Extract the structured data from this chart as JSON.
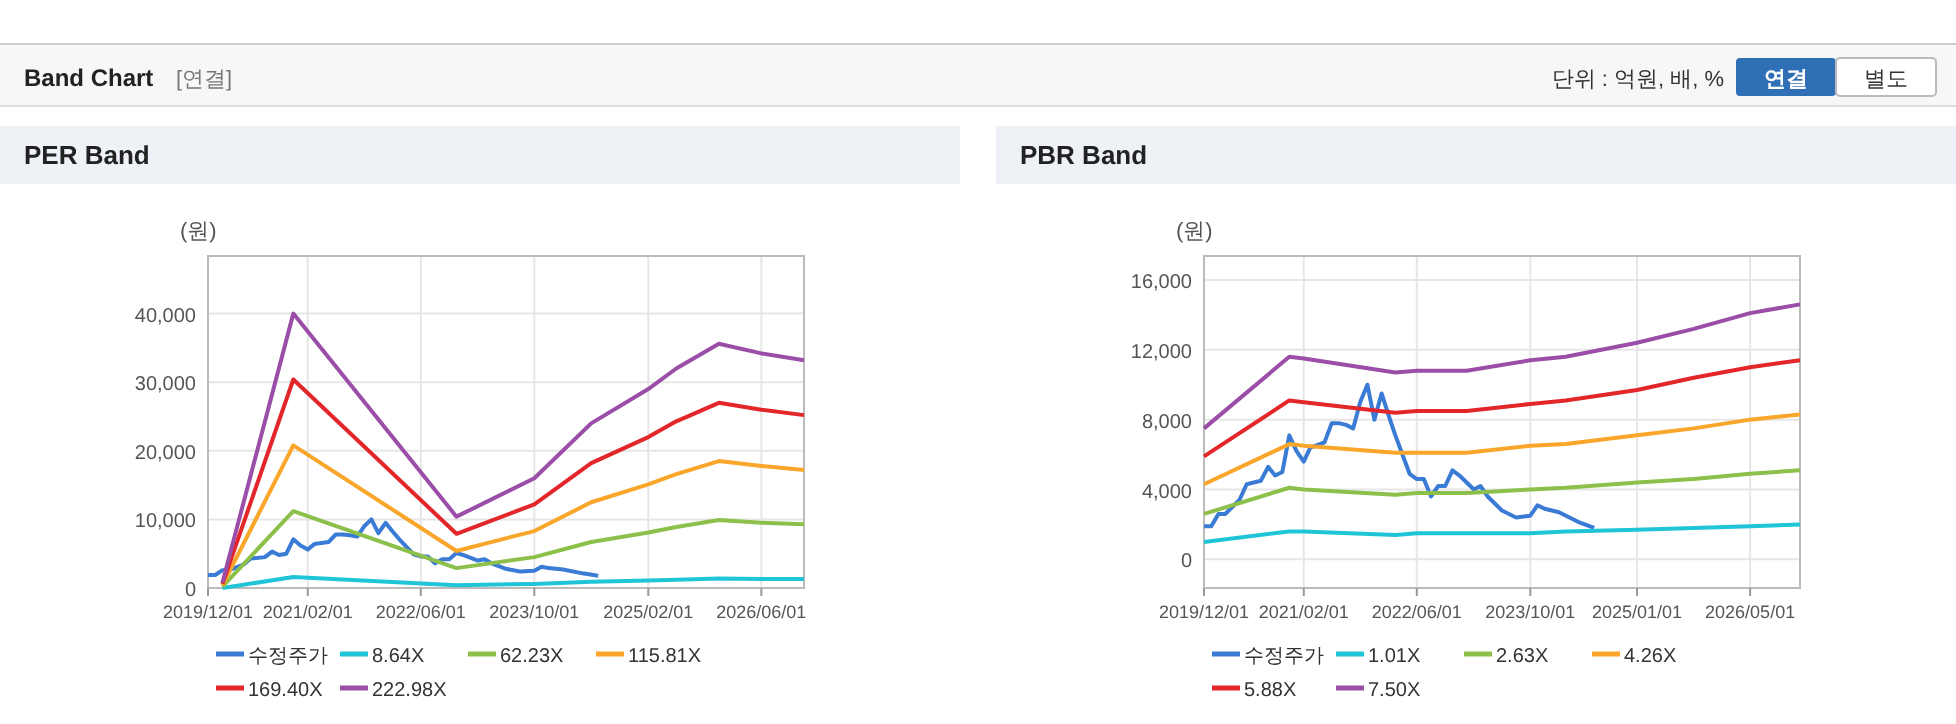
{
  "chart_data": [
    {
      "type": "line",
      "title": "PER Band",
      "ylabel": "(원)",
      "annotations": [
        "Band Chart",
        "[연결]",
        "단위 : 억원, 배, %",
        "연결",
        "별도"
      ],
      "xlim": [
        "2019-12-01",
        "2026-12-01"
      ],
      "xticks": [
        {
          "value": "2019-12-01",
          "label": "2019/12/01"
        },
        {
          "value": "2021-02-01",
          "label": "2021/02/01"
        },
        {
          "value": "2022-06-01",
          "label": "2022/06/01"
        },
        {
          "value": "2023-10-01",
          "label": "2023/10/01"
        },
        {
          "value": "2025-02-01",
          "label": "2025/02/01"
        },
        {
          "value": "2026-06-01",
          "label": "2026/06/01"
        }
      ],
      "ylim": [
        0,
        48400
      ],
      "yticks": [
        0,
        {
          "value": 10000,
          "label": "10,000"
        },
        {
          "value": 20000,
          "label": "20,000"
        },
        {
          "value": 30000,
          "label": "30,000"
        },
        {
          "value": 40000,
          "label": "40,000"
        }
      ],
      "grid": true,
      "legend": "bottom",
      "x": [
        "2020-02",
        "2020-12",
        "2022-11",
        "2023-10",
        "2024-06",
        "2025-02",
        "2025-06",
        "2025-12",
        "2026-06",
        "2026-12"
      ],
      "series": [
        {
          "name": "수정주가",
          "color": "#3a7bd5",
          "x": [
            "2019-12",
            "2020-01",
            "2020-02",
            "2020-03",
            "2020-05",
            "2020-06",
            "2020-08",
            "2020-09",
            "2020-10",
            "2020-11",
            "2020-12",
            "2021-01",
            "2021-02",
            "2021-03",
            "2021-05",
            "2021-06",
            "2021-07",
            "2021-08",
            "2021-09",
            "2021-10",
            "2021-11",
            "2021-12",
            "2022-01",
            "2022-02",
            "2022-03",
            "2022-05",
            "2022-06",
            "2022-07",
            "2022-08",
            "2022-09",
            "2022-10",
            "2022-11",
            "2022-12",
            "2023-02",
            "2023-03",
            "2023-04",
            "2023-06",
            "2023-08",
            "2023-10",
            "2023-11",
            "2023-12",
            "2024-02",
            "2024-05",
            "2024-07"
          ],
          "values": [
            1900,
            1900,
            2600,
            2600,
            3400,
            4300,
            4500,
            5300,
            4800,
            5000,
            7100,
            6200,
            5600,
            6400,
            6700,
            7800,
            7800,
            7700,
            7500,
            9000,
            10000,
            8000,
            9500,
            8200,
            7100,
            4900,
            4600,
            4600,
            3600,
            4200,
            4200,
            5100,
            4800,
            4000,
            4200,
            3600,
            2800,
            2400,
            2500,
            3100,
            2900,
            2700,
            2100,
            1800
          ]
        },
        {
          "name": "8.64X",
          "color": "#1fc4d6",
          "values": [
            0,
            1600,
            400,
            600,
            900,
            1100,
            1200,
            1400,
            1300,
            1300
          ]
        },
        {
          "name": "62.23X",
          "color": "#8dc04a",
          "values": [
            200,
            11200,
            2900,
            4500,
            6700,
            8100,
            8900,
            9900,
            9500,
            9300
          ]
        },
        {
          "name": "115.81X",
          "color": "#f9a62b",
          "values": [
            400,
            20800,
            5400,
            8300,
            12500,
            15100,
            16600,
            18500,
            17800,
            17200
          ]
        },
        {
          "name": "169.40X",
          "color": "#e3262a",
          "values": [
            600,
            30400,
            7900,
            12200,
            18200,
            22000,
            24300,
            27000,
            26000,
            25200
          ]
        },
        {
          "name": "222.98X",
          "color": "#9b4ea8",
          "values": [
            800,
            40000,
            10400,
            16000,
            24000,
            29000,
            32000,
            35600,
            34200,
            33200
          ]
        }
      ]
    },
    {
      "type": "line",
      "title": "PBR Band",
      "ylabel": "(원)",
      "xlim": [
        "2019-12-01",
        "2026-12-01"
      ],
      "xticks": [
        {
          "value": "2019-12-01",
          "label": "2019/12/01"
        },
        {
          "value": "2021-02-01",
          "label": "2021/02/01"
        },
        {
          "value": "2022-06-01",
          "label": "2022/06/01"
        },
        {
          "value": "2023-10-01",
          "label": "2023/10/01"
        },
        {
          "value": "2025-01-01",
          "label": "2025/01/01"
        },
        {
          "value": "2026-05-01",
          "label": "2026/05/01"
        }
      ],
      "ylim": [
        -1640,
        17370
      ],
      "yticks": [
        0,
        {
          "value": 4000,
          "label": "4,000"
        },
        {
          "value": 8000,
          "label": "8,000"
        },
        {
          "value": 12000,
          "label": "12,000"
        },
        {
          "value": 16000,
          "label": "16,000"
        }
      ],
      "grid": true,
      "legend": "bottom",
      "x": [
        "2019-12",
        "2020-12",
        "2021-02",
        "2022-03",
        "2022-06",
        "2023-01",
        "2023-10",
        "2024-03",
        "2025-01",
        "2025-09",
        "2026-05",
        "2026-12"
      ],
      "series": [
        {
          "name": "수정주가",
          "color": "#3a7bd5",
          "x": [
            "2019-12",
            "2020-01",
            "2020-02",
            "2020-03",
            "2020-05",
            "2020-06",
            "2020-08",
            "2020-09",
            "2020-10",
            "2020-11",
            "2020-12",
            "2021-01",
            "2021-02",
            "2021-03",
            "2021-05",
            "2021-06",
            "2021-07",
            "2021-08",
            "2021-09",
            "2021-10",
            "2021-11",
            "2021-12",
            "2022-01",
            "2022-02",
            "2022-03",
            "2022-05",
            "2022-06",
            "2022-07",
            "2022-08",
            "2022-09",
            "2022-10",
            "2022-11",
            "2022-12",
            "2023-02",
            "2023-03",
            "2023-04",
            "2023-06",
            "2023-08",
            "2023-10",
            "2023-11",
            "2023-12",
            "2024-02",
            "2024-05",
            "2024-07"
          ],
          "values": [
            1900,
            1900,
            2600,
            2600,
            3400,
            4300,
            4500,
            5300,
            4800,
            5000,
            7100,
            6200,
            5600,
            6400,
            6700,
            7800,
            7800,
            7700,
            7500,
            9000,
            10000,
            8000,
            9500,
            8200,
            7100,
            4900,
            4600,
            4600,
            3600,
            4200,
            4200,
            5100,
            4800,
            4000,
            4200,
            3600,
            2800,
            2400,
            2500,
            3100,
            2900,
            2700,
            2100,
            1800
          ]
        },
        {
          "name": "1.01X",
          "color": "#1fc4d6",
          "values": [
            1000,
            1600,
            1600,
            1400,
            1500,
            1500,
            1500,
            1600,
            1700,
            1800,
            1900,
            2000
          ]
        },
        {
          "name": "2.63X",
          "color": "#8dc04a",
          "values": [
            2600,
            4100,
            4000,
            3700,
            3800,
            3800,
            4000,
            4100,
            4400,
            4600,
            4900,
            5100
          ]
        },
        {
          "name": "4.26X",
          "color": "#f9a62b",
          "values": [
            4300,
            6600,
            6500,
            6100,
            6100,
            6100,
            6500,
            6600,
            7100,
            7500,
            8000,
            8300
          ]
        },
        {
          "name": "5.88X",
          "color": "#e3262a",
          "values": [
            5900,
            9100,
            9000,
            8400,
            8500,
            8500,
            8900,
            9100,
            9700,
            10400,
            11000,
            11400
          ]
        },
        {
          "name": "7.50X",
          "color": "#9b4ea8",
          "values": [
            7500,
            11600,
            11500,
            10700,
            10800,
            10800,
            11400,
            11600,
            12400,
            13200,
            14100,
            14600
          ]
        }
      ]
    }
  ]
}
